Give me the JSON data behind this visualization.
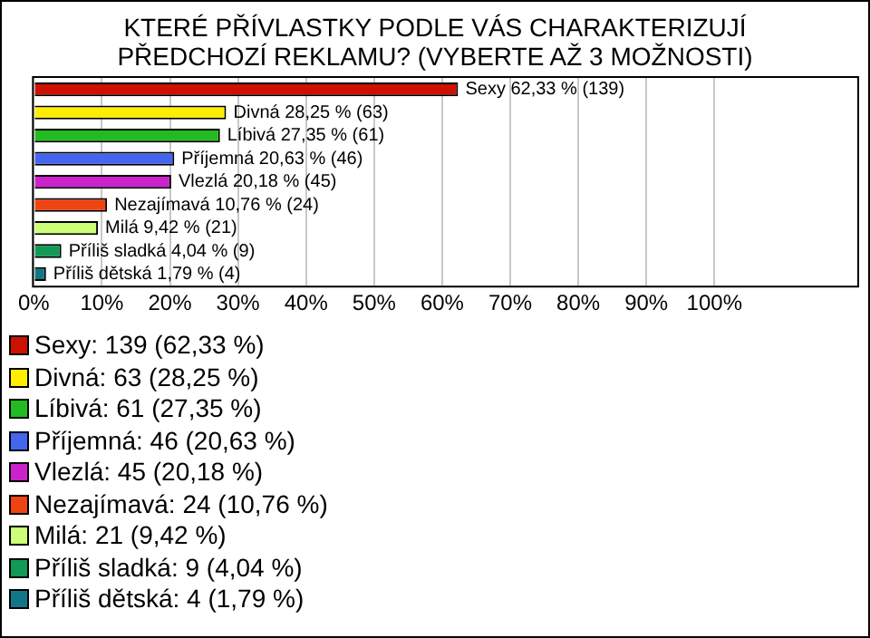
{
  "chart_data": {
    "type": "bar",
    "orientation": "horizontal",
    "title": "KTERÉ PŘÍVLASTKY PODLE VÁS CHARAKTERIZUJÍ PŘEDCHOZÍ REKLAMU? (VYBERTE AŽ 3 MOŽNOSTI)",
    "categories": [
      null,
      null,
      null,
      null,
      null,
      null,
      null,
      null,
      null
    ],
    "values": [
      62.33,
      28.25,
      27.35,
      20.63,
      20.18,
      10.76,
      9.42,
      4.04,
      1.79
    ],
    "colors": [
      "#cc1100",
      "#ffee00",
      "#22bb22",
      "#4466ee",
      "#cc22cc",
      "#ee4411",
      "#ccff77",
      "#119955",
      "#117788"
    ],
    "value_labels": [
      "Sexy 62,33 % (139)",
      "Divná 28,25 % (63)",
      "Líbivá 27,35 % (61)",
      "Příjemná 20,63 % (46)",
      "Vlezlá 20,18 % (45)",
      "Nezajímavá 10,76 % (24)",
      "Milá 9,42 % (21)",
      "Příliš sladká 4,04 % (9)",
      "Příliš dětská 1,79 % (4)"
    ],
    "xlim": [
      0,
      121
    ],
    "xticks": [
      {
        "value": 0,
        "label": "0%"
      },
      {
        "value": 10,
        "label": "10%"
      },
      {
        "value": 20,
        "label": "20%"
      },
      {
        "value": 30,
        "label": "30%"
      },
      {
        "value": 40,
        "label": "40%"
      },
      {
        "value": 50,
        "label": "50%"
      },
      {
        "value": 60,
        "label": "60%"
      },
      {
        "value": 70,
        "label": "70%"
      },
      {
        "value": 80,
        "label": "80%"
      },
      {
        "value": 90,
        "label": "90%"
      },
      {
        "value": 100,
        "label": "100%"
      }
    ],
    "grid": "x",
    "annotations": [
      "Sexy: 139 (62,33 %)",
      "Divná: 63 (28,25 %)",
      "Líbivá: 61 (27,35 %)",
      "Příjemná: 46 (20,63 %)",
      "Vlezlá: 45 (20,18 %)",
      "Nezajímavá: 24 (10,76 %)",
      "Milá: 21 (9,42 %)",
      "Příliš sladká: 9 (4,04 %)",
      "Příliš dětská: 4 (1,79 %)"
    ]
  }
}
